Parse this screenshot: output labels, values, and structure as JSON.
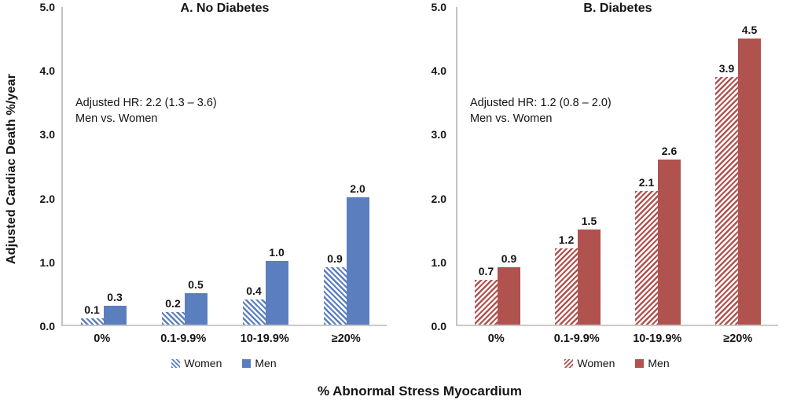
{
  "figure": {
    "y_axis_title": "Adjusted Cardiac Death %/year",
    "x_axis_title": "% Abnormal Stress Myocardium"
  },
  "chart_data": [
    {
      "type": "bar",
      "panel": "A",
      "title": "A. No Diabetes",
      "annotation": [
        "Adjusted HR: 2.2 (1.3 – 3.6)",
        "Men vs. Women"
      ],
      "categories": [
        "0%",
        "0.1-9.9%",
        "10-19.9%",
        "≥20%"
      ],
      "series": [
        {
          "name": "Women",
          "style": "hatched",
          "hatch_direction": "down",
          "values": [
            0.1,
            0.2,
            0.4,
            0.9
          ]
        },
        {
          "name": "Men",
          "style": "solid",
          "values": [
            0.3,
            0.5,
            1.0,
            2.0
          ]
        }
      ],
      "ylim": [
        0,
        5
      ],
      "yticks": [
        "5.0",
        "4.0",
        "3.0",
        "2.0",
        "1.0",
        "0.0"
      ],
      "color": "#5b7fbe",
      "grid": "off",
      "legend_position": "bottom"
    },
    {
      "type": "bar",
      "panel": "B",
      "title": "B. Diabetes",
      "annotation": [
        "Adjusted HR: 1.2 (0.8 – 2.0)",
        "Men vs. Women"
      ],
      "categories": [
        "0%",
        "0.1-9.9%",
        "10-19.9%",
        "≥20%"
      ],
      "series": [
        {
          "name": "Women",
          "style": "hatched",
          "hatch_direction": "up",
          "values": [
            0.7,
            1.2,
            2.1,
            3.9
          ]
        },
        {
          "name": "Men",
          "style": "solid",
          "values": [
            0.9,
            1.5,
            2.6,
            4.5
          ]
        }
      ],
      "ylim": [
        0,
        5
      ],
      "yticks": [
        "5.0",
        "4.0",
        "3.0",
        "2.0",
        "1.0",
        "0.0"
      ],
      "color": "#b0524e",
      "grid": "off",
      "legend_position": "bottom"
    }
  ]
}
